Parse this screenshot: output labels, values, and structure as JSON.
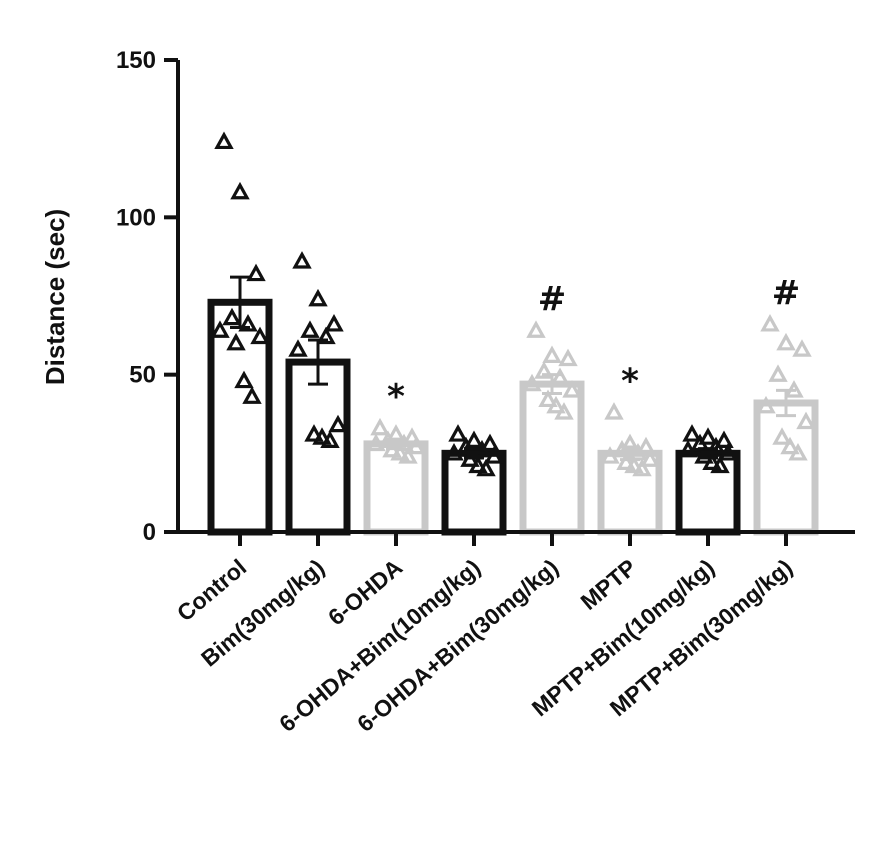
{
  "chart_data": {
    "type": "bar",
    "title": "",
    "xlabel": "",
    "ylabel": "Distance (sec)",
    "ylim": [
      0,
      150
    ],
    "yticks": [
      "0",
      "50",
      "100",
      "150"
    ],
    "grid": false,
    "categories": [
      "Control",
      "Bim(30mg/kg)",
      "6-OHDA",
      "6-OHDA+Bim(10mg/kg)",
      "6-OHDA+Bim(30mg/kg)",
      "MPTP",
      "MPTP+Bim(10mg/kg)",
      "MPTP+Bim(30mg/kg)"
    ],
    "values": [
      73,
      54,
      28,
      25,
      47,
      25,
      25,
      41
    ],
    "errors": [
      8,
      7,
      1.5,
      1.5,
      3,
      2,
      1.5,
      4
    ],
    "bar_colors": [
      "#111111",
      "#111111",
      "#c8c8c8",
      "#111111",
      "#c8c8c8",
      "#c8c8c8",
      "#111111",
      "#c8c8c8"
    ],
    "significance": [
      "",
      "",
      "*",
      "",
      "#",
      "*",
      "",
      "#"
    ],
    "points": [
      [
        124,
        108,
        82,
        68,
        66,
        64,
        62,
        60,
        48,
        43
      ],
      [
        86,
        74,
        66,
        64,
        62,
        58,
        34,
        31,
        30,
        29
      ],
      [
        33,
        31,
        30,
        29,
        28,
        28,
        27,
        26,
        25,
        24
      ],
      [
        31,
        29,
        28,
        27,
        26,
        25,
        24,
        23,
        21,
        20
      ],
      [
        64,
        56,
        55,
        51,
        49,
        47,
        45,
        42,
        40,
        38
      ],
      [
        38,
        28,
        27,
        26,
        25,
        24,
        23,
        22,
        21,
        20
      ],
      [
        31,
        30,
        29,
        28,
        27,
        26,
        25,
        24,
        22,
        21
      ],
      [
        66,
        60,
        58,
        50,
        45,
        40,
        35,
        30,
        27,
        25
      ]
    ]
  }
}
